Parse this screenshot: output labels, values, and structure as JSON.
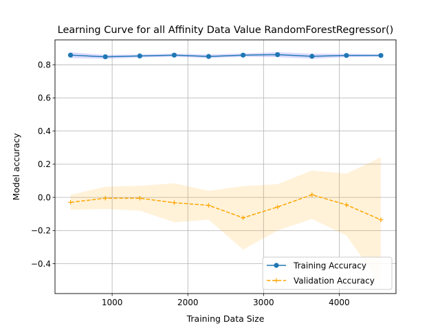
{
  "chart_data": {
    "type": "line",
    "title": "Learning Curve for all Affinity Data Value RandomForestRegressor()",
    "xlabel": "Training Data Size",
    "ylabel": "Model accuracy",
    "xlim": [
      245,
      4750
    ],
    "ylim": [
      -0.58,
      0.95
    ],
    "xticks": [
      1000,
      2000,
      3000,
      4000
    ],
    "xtick_labels": [
      "1000",
      "2000",
      "3000",
      "4000"
    ],
    "yticks": [
      -0.4,
      -0.2,
      0.0,
      0.2,
      0.4,
      0.6,
      0.8
    ],
    "ytick_labels": [
      "−0.4",
      "−0.2",
      "0.0",
      "0.2",
      "0.4",
      "0.6",
      "0.8"
    ],
    "grid": true,
    "legend_position": "lower-right",
    "x": [
      450,
      910,
      1365,
      1820,
      2275,
      2730,
      3185,
      3640,
      4095,
      4550
    ],
    "series": [
      {
        "name": "Training Accuracy",
        "color": "#1f77b4",
        "marker": "circle",
        "linestyle": "solid",
        "values": [
          0.858,
          0.848,
          0.853,
          0.858,
          0.85,
          0.858,
          0.861,
          0.851,
          0.856,
          0.856
        ],
        "band_upper": [
          0.875,
          0.86,
          0.862,
          0.867,
          0.862,
          0.868,
          0.876,
          0.867,
          0.866,
          0.864
        ],
        "band_lower": [
          0.84,
          0.836,
          0.844,
          0.848,
          0.84,
          0.848,
          0.846,
          0.836,
          0.846,
          0.848
        ],
        "band_color": "#5555ff"
      },
      {
        "name": "Validation Accuracy",
        "color": "#ffa500",
        "marker": "plus",
        "linestyle": "dashed",
        "values": [
          -0.03,
          -0.005,
          -0.005,
          -0.032,
          -0.048,
          -0.123,
          -0.058,
          0.016,
          -0.045,
          -0.135
        ],
        "band_upper": [
          0.015,
          0.065,
          0.07,
          0.085,
          0.04,
          0.068,
          0.08,
          0.162,
          0.143,
          0.242
        ],
        "band_lower": [
          -0.075,
          -0.07,
          -0.08,
          -0.15,
          -0.135,
          -0.315,
          -0.2,
          -0.13,
          -0.23,
          -0.525
        ],
        "band_color": "#ffa500"
      }
    ]
  }
}
